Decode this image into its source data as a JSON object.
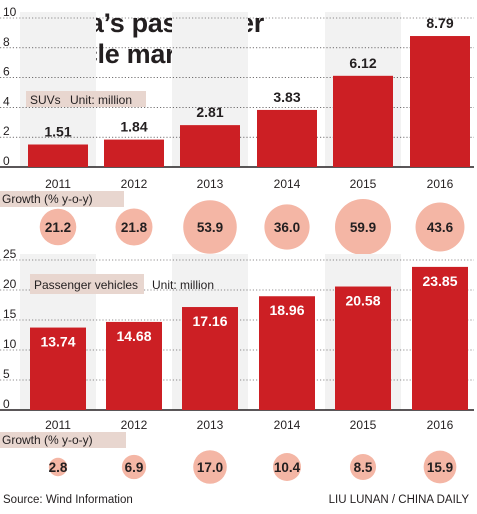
{
  "title_lines": [
    "China’s passenger",
    "vehicle market"
  ],
  "footer": {
    "source": "Source: Wind Information",
    "credit": "LIU LUNAN / CHINA DAILY"
  },
  "colors": {
    "bar": "#cc1f24",
    "bubble": "#f4b6a5",
    "label_box": "#e8d6cf",
    "grid": "#231f20",
    "text": "#231f20",
    "bar_label_light": "#ffffff",
    "bar_label_dark": "#231f20"
  },
  "chart_data": [
    {
      "type": "bar",
      "label": "SUVs",
      "unit": "Unit: million",
      "categories": [
        "2011",
        "2012",
        "2013",
        "2014",
        "2015",
        "2016"
      ],
      "values": [
        1.51,
        1.84,
        2.81,
        3.83,
        6.12,
        8.79
      ],
      "value_labels": [
        "1.51",
        "1.84",
        "2.81",
        "3.83",
        "6.12",
        "8.79"
      ],
      "yticks": [
        "0",
        "2",
        "4",
        "6",
        "8",
        "10"
      ],
      "ylim": [
        0,
        10
      ],
      "growth_label": "Growth (% y-o-y)",
      "growth": [
        21.2,
        21.8,
        53.9,
        36.0,
        59.9,
        43.6
      ],
      "growth_labels": [
        "21.2",
        "21.8",
        "53.9",
        "36.0",
        "59.9",
        "43.6"
      ],
      "grid": true
    },
    {
      "type": "bar",
      "label": "Passenger vehicles",
      "unit": "Unit: million",
      "categories": [
        "2011",
        "2012",
        "2013",
        "2014",
        "2015",
        "2016"
      ],
      "values": [
        13.74,
        14.68,
        17.16,
        18.96,
        20.58,
        23.85
      ],
      "value_labels": [
        "13.74",
        "14.68",
        "17.16",
        "18.96",
        "20.58",
        "23.85"
      ],
      "yticks": [
        "0",
        "5",
        "10",
        "15",
        "20",
        "25"
      ],
      "ylim": [
        0,
        25
      ],
      "growth_label": "Growth (% y-o-y)",
      "growth": [
        2.8,
        6.9,
        17.0,
        10.4,
        8.5,
        15.9
      ],
      "growth_labels": [
        "2.8",
        "6.9",
        "17.0",
        "10.4",
        "8.5",
        "15.9"
      ],
      "grid": true
    }
  ]
}
